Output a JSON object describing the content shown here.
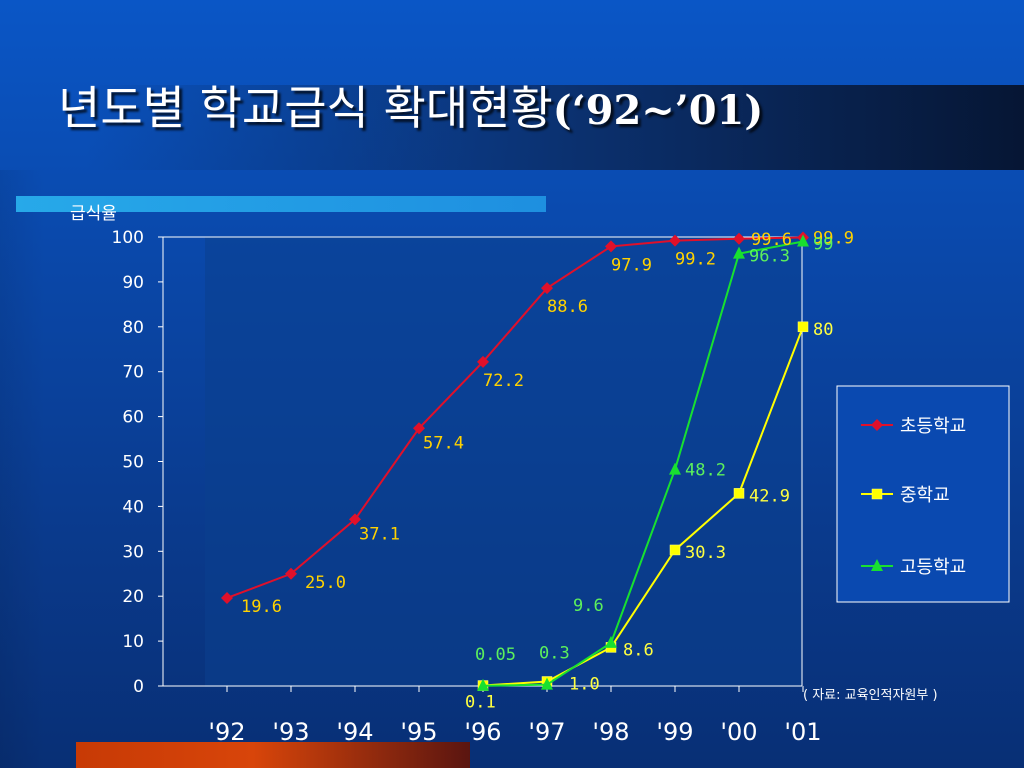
{
  "slide": {
    "title_main": "년도별 학교급식 확대현황",
    "title_years": "(‘92~’01)",
    "source_note": "( 자료: 교육인적자원부 )"
  },
  "colors": {
    "background": "#0a47a8",
    "elementary": "#e0102a",
    "middle": "#ffff00",
    "high": "#18e030",
    "elementary_label": "#ffd200",
    "middle_label": "#ffff40",
    "high_label": "#5cf05c",
    "grid_frame": "#ffffff"
  },
  "chart_data": {
    "type": "line",
    "title": "",
    "ylabel": "급식율",
    "xlabel": "",
    "ylim": [
      0,
      100
    ],
    "yticks": [
      0,
      10,
      20,
      30,
      40,
      50,
      60,
      70,
      80,
      90,
      100
    ],
    "categories": [
      "'92",
      "'93",
      "'94",
      "'95",
      "'96",
      "'97",
      "'98",
      "'99",
      "'00",
      "'01"
    ],
    "legend_position": "right",
    "series": [
      {
        "name": "초등학교",
        "color": "#e0102a",
        "marker": "diamond",
        "label_color": "#ffd200",
        "values": [
          19.6,
          25.0,
          37.1,
          57.4,
          72.2,
          88.6,
          97.9,
          99.2,
          99.6,
          99.9
        ],
        "labels": [
          "19.6",
          "25.0",
          "37.1",
          "57.4",
          "72.2",
          "88.6",
          "97.9",
          "99.2",
          "99.6",
          "99.9"
        ]
      },
      {
        "name": "중학교",
        "color": "#ffff00",
        "marker": "square",
        "label_color": "#ffff40",
        "values": [
          null,
          null,
          null,
          null,
          0.1,
          1.0,
          8.6,
          30.3,
          42.9,
          80
        ],
        "labels": [
          null,
          null,
          null,
          null,
          "0.1",
          "1.0",
          "8.6",
          "30.3",
          "42.9",
          "80"
        ]
      },
      {
        "name": "고등학교",
        "color": "#18e030",
        "marker": "triangle",
        "label_color": "#5cf05c",
        "values": [
          null,
          null,
          null,
          null,
          0.05,
          0.3,
          9.6,
          48.2,
          96.3,
          99
        ],
        "labels": [
          null,
          null,
          null,
          null,
          "0.05",
          "0.3",
          "9.6",
          "48.2",
          "96.3",
          "99"
        ]
      }
    ]
  }
}
